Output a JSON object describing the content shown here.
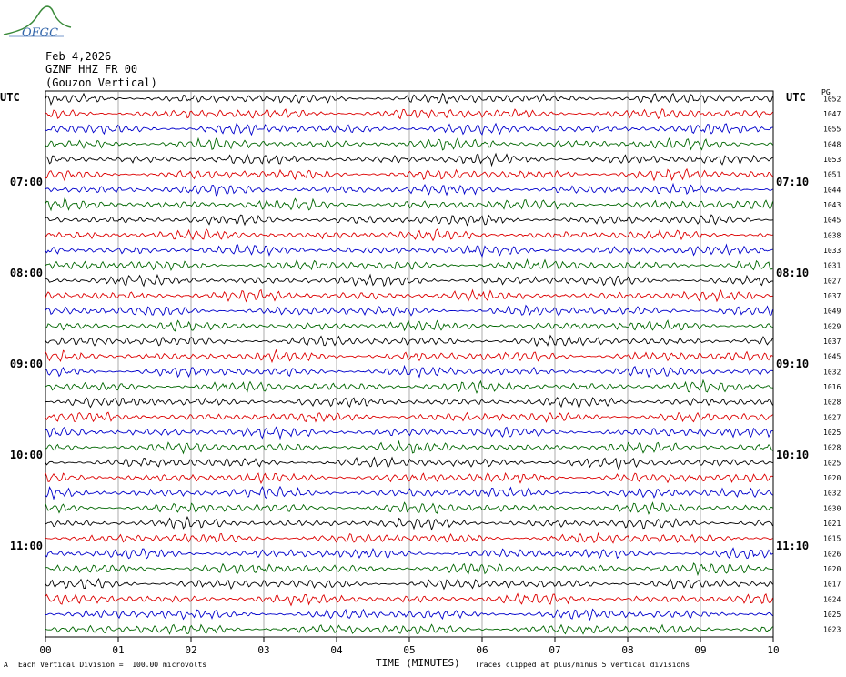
{
  "header": {
    "logo_text": "OFGC",
    "date": "Feb 4,2026",
    "station": "GZNF HHZ FR 00",
    "location": "(Gouzon Vertical)"
  },
  "utc_label_left": "UTC",
  "utc_label_right": "UTC",
  "right_corner_label": "PG",
  "colors": {
    "trace": [
      "#000000",
      "#dd0000",
      "#0000cc",
      "#006600"
    ],
    "grid": "#888888"
  },
  "chart_data": {
    "type": "line",
    "title": "",
    "xlabel": "TIME (MINUTES)",
    "ylabel": "",
    "x_ticks": [
      "00",
      "01",
      "02",
      "03",
      "04",
      "05",
      "06",
      "07",
      "08",
      "09",
      "10"
    ],
    "xlim": [
      0,
      10
    ],
    "grid": true,
    "trace_count": 36,
    "left_time_labels": [
      {
        "row": 6,
        "label": "07:00"
      },
      {
        "row": 12,
        "label": "08:00"
      },
      {
        "row": 18,
        "label": "09:00"
      },
      {
        "row": 24,
        "label": "10:00"
      },
      {
        "row": 30,
        "label": "11:00"
      }
    ],
    "right_time_labels": [
      {
        "row": 6,
        "label": "07:10"
      },
      {
        "row": 12,
        "label": "08:10"
      },
      {
        "row": 18,
        "label": "09:10"
      },
      {
        "row": 24,
        "label": "10:10"
      },
      {
        "row": 30,
        "label": "11:10"
      }
    ],
    "right_counts": [
      "1052",
      "1047",
      "1055",
      "1048",
      "1053",
      "1051",
      "1044",
      "1043",
      "1045",
      "1038",
      "1033",
      "1031",
      "1027",
      "1037",
      "1049",
      "1029",
      "1037",
      "1045",
      "1032",
      "1016",
      "1028",
      "1027",
      "1025",
      "1028",
      "1025",
      "1020",
      "1032",
      "1030",
      "1021",
      "1015",
      "1026",
      "1020",
      "1017",
      "1024",
      "1025",
      "1023"
    ]
  },
  "footer": {
    "left_mark": "A",
    "scale_note": "Each Vertical Division =  100.00 microvolts",
    "clip_note": "Traces clipped at plus/minus 5 vertical divisions"
  }
}
